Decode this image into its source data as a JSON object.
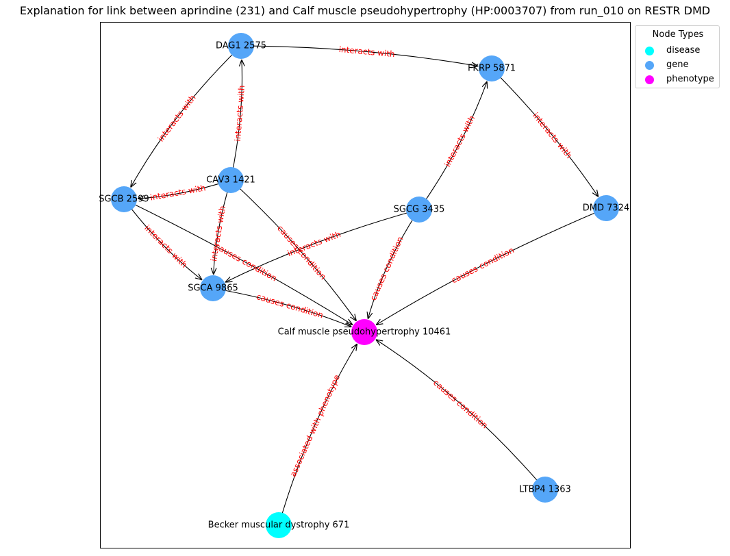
{
  "title": "Explanation for link between aprindine (231) and Calf muscle pseudohypertrophy (HP:0003707) from run_010 on RESTR DMD",
  "legend": {
    "title": "Node Types",
    "items": [
      {
        "label": "disease",
        "color": "#00ffff"
      },
      {
        "label": "gene",
        "color": "#55a6f8"
      },
      {
        "label": "phenotype",
        "color": "#ff00ff"
      }
    ]
  },
  "nodes": [
    {
      "id": "dag1",
      "label": "DAG1 2575",
      "type": "gene"
    },
    {
      "id": "fkrp",
      "label": "FKRP 5871",
      "type": "gene"
    },
    {
      "id": "cav3",
      "label": "CAV3 1421",
      "type": "gene"
    },
    {
      "id": "sgcb",
      "label": "SGCB 2599",
      "type": "gene"
    },
    {
      "id": "sgcg",
      "label": "SGCG 3435",
      "type": "gene"
    },
    {
      "id": "dmd",
      "label": "DMD 7324",
      "type": "gene"
    },
    {
      "id": "sgca",
      "label": "SGCA 9865",
      "type": "gene"
    },
    {
      "id": "calf",
      "label": "Calf muscle pseudohypertrophy 10461",
      "type": "phenotype"
    },
    {
      "id": "ltbp4",
      "label": "LTBP4 1363",
      "type": "gene"
    },
    {
      "id": "becker",
      "label": "Becker muscular dystrophy 671",
      "type": "disease"
    }
  ],
  "edges": [
    {
      "source": "dag1",
      "target": "fkrp",
      "label": "interacts with"
    },
    {
      "source": "dag1",
      "target": "sgcb",
      "label": "interacts with"
    },
    {
      "source": "cav3",
      "target": "dag1",
      "label": "interacts with"
    },
    {
      "source": "cav3",
      "target": "sgcb",
      "label": "interacts with"
    },
    {
      "source": "cav3",
      "target": "sgca",
      "label": "interacts with"
    },
    {
      "source": "cav3",
      "target": "calf",
      "label": "causes condition"
    },
    {
      "source": "sgcg",
      "target": "fkrp",
      "label": "interacts with"
    },
    {
      "source": "fkrp",
      "target": "dmd",
      "label": "interacts with"
    },
    {
      "source": "sgcb",
      "target": "sgca",
      "label": "interacts with"
    },
    {
      "source": "sgcb",
      "target": "calf",
      "label": "causes condition"
    },
    {
      "source": "sgcg",
      "target": "sgca",
      "label": "interacts with"
    },
    {
      "source": "sgcg",
      "target": "calf",
      "label": "causes condition"
    },
    {
      "source": "dmd",
      "target": "calf",
      "label": "causes condition"
    },
    {
      "source": "sgca",
      "target": "calf",
      "label": "causes condition"
    },
    {
      "source": "ltbp4",
      "target": "calf",
      "label": "causes condition"
    },
    {
      "source": "becker",
      "target": "calf",
      "label": "associated with phenotype"
    }
  ]
}
